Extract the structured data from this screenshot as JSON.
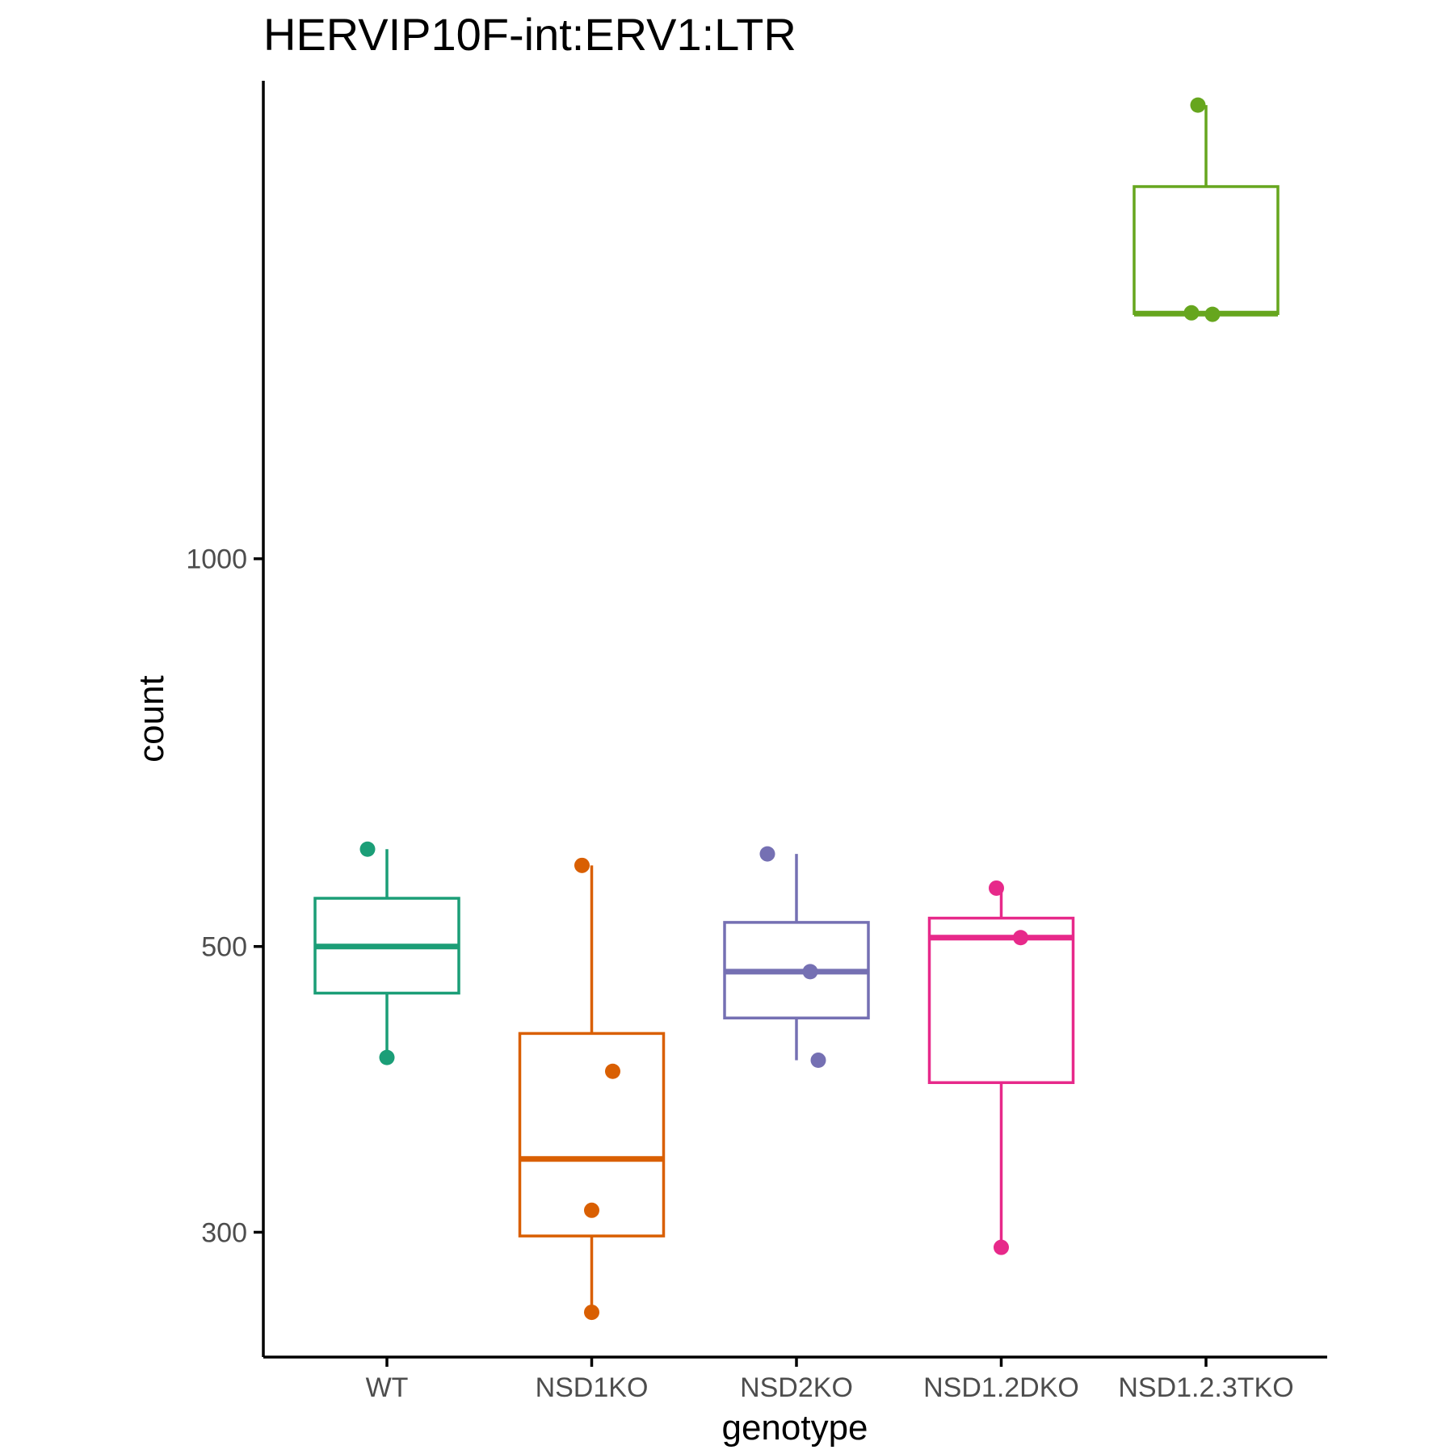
{
  "chart_data": {
    "type": "box",
    "title": "HERVIP10F-int:ERV1:LTR",
    "xlabel": "genotype",
    "ylabel": "count",
    "y_scale": "log10",
    "ylim": [
      240,
      2350
    ],
    "yticks": [
      300,
      500,
      1000
    ],
    "grid": false,
    "legend": "none",
    "categories": [
      "WT",
      "NSD1KO",
      "NSD2KO",
      "NSD1.2DKO",
      "NSD1.2.3TKO"
    ],
    "series": [
      {
        "category": "WT",
        "color": "#1B9E77",
        "box": {
          "min": 410,
          "q1": 460,
          "median": 500,
          "q3": 545,
          "max": 595
        },
        "points": [
          595,
          410
        ]
      },
      {
        "category": "NSD1KO",
        "color": "#D95F02",
        "box": {
          "min": 260,
          "q1": 298,
          "median": 342,
          "q3": 428,
          "max": 578
        },
        "points": [
          578,
          400,
          312,
          260
        ]
      },
      {
        "category": "NSD2KO",
        "color": "#7570B3",
        "box": {
          "min": 408,
          "q1": 440,
          "median": 478,
          "q3": 522,
          "max": 590
        },
        "points": [
          590,
          478,
          408
        ]
      },
      {
        "category": "NSD1.2DKO",
        "color": "#E7298A",
        "box": {
          "min": 292,
          "q1": 392,
          "median": 508,
          "q3": 526,
          "max": 555
        },
        "points": [
          555,
          508,
          292
        ]
      },
      {
        "category": "NSD1.2.3TKO",
        "color": "#66A61E",
        "box": {
          "min": 1550,
          "q1": 1550,
          "median": 1550,
          "q3": 1945,
          "max": 2250
        },
        "points": [
          2250,
          1552,
          1548
        ]
      }
    ]
  }
}
